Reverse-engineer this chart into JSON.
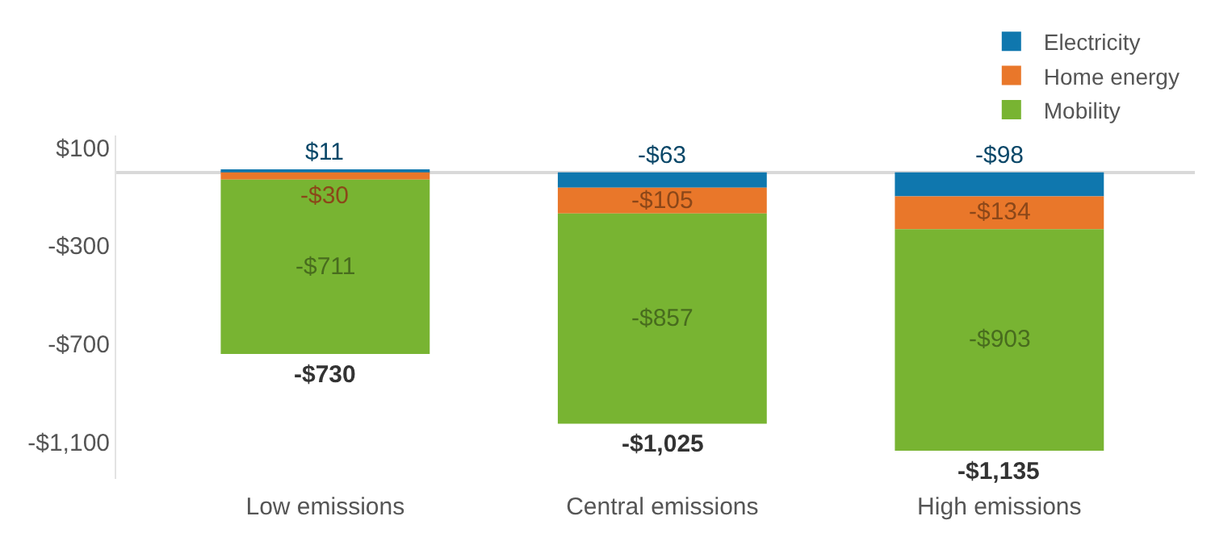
{
  "chart_data": {
    "type": "bar",
    "stacked": true,
    "categories": [
      "Low emissions",
      "Central emissions",
      "High emissions"
    ],
    "series": [
      {
        "name": "Electricity",
        "color": "#0f77ae",
        "values": [
          11,
          -63,
          -98
        ],
        "value_labels": [
          "$11",
          "-$63",
          "-$98"
        ]
      },
      {
        "name": "Home energy",
        "color": "#e9772a",
        "values": [
          -30,
          -105,
          -134
        ],
        "value_labels": [
          "-$30",
          "-$105",
          "-$134"
        ]
      },
      {
        "name": "Mobility",
        "color": "#78b432",
        "values": [
          -711,
          -857,
          -903
        ],
        "value_labels": [
          "-$711",
          "-$857",
          "-$903"
        ]
      }
    ],
    "totals": [
      "-$730",
      "-$1,025",
      "-$1,135"
    ],
    "yticks": [
      {
        "value": 100,
        "label": "$100"
      },
      {
        "value": -300,
        "label": "-$300"
      },
      {
        "value": -700,
        "label": "-$700"
      },
      {
        "value": -1100,
        "label": "-$1,100"
      }
    ],
    "ylim": [
      -1250,
      150
    ],
    "legend": "top right"
  }
}
